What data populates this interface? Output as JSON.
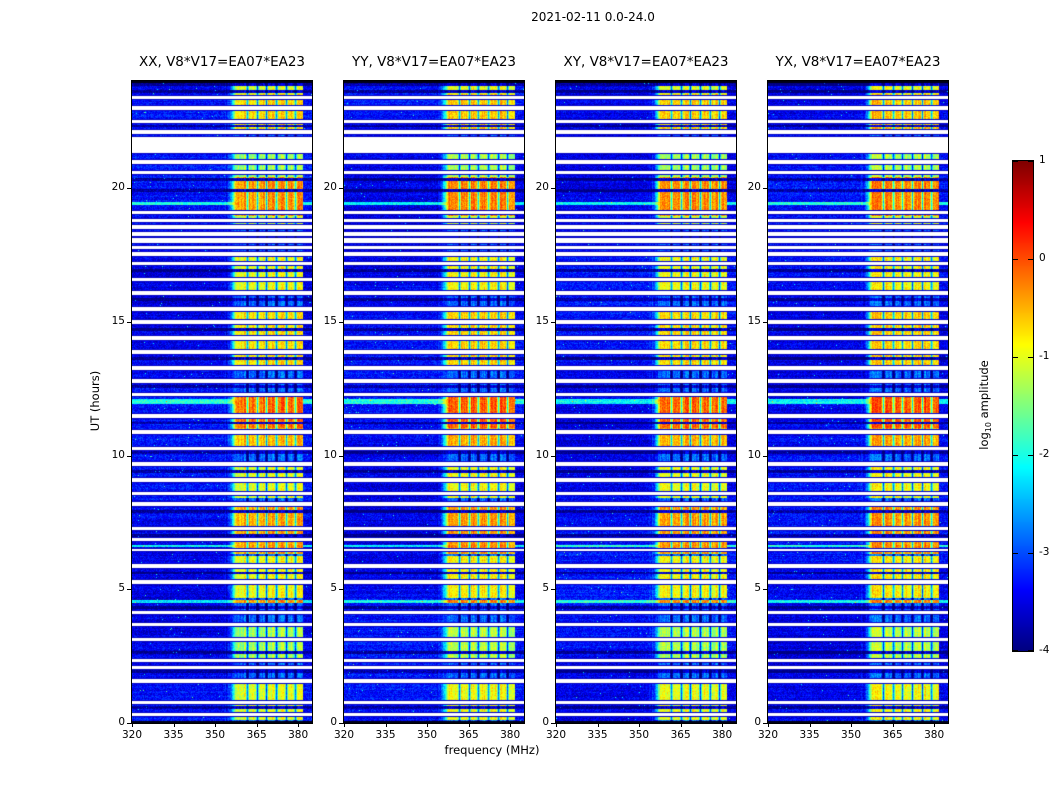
{
  "figure": {
    "title": "2021-02-11 0.0-24.0"
  },
  "chart_data": {
    "type": "heatmap",
    "title": "2021-02-11 0.0-24.0",
    "xlabel": "frequency (MHz)",
    "ylabel": "UT (hours)",
    "x_range": [
      320,
      385
    ],
    "y_range": [
      0,
      24
    ],
    "x_ticks": [
      320,
      335,
      350,
      365,
      380
    ],
    "y_ticks": [
      0,
      5,
      10,
      15,
      20
    ],
    "panels": [
      {
        "id": "xx",
        "title": "XX, V8*V17=EA07*EA23",
        "band_boost": 0.0
      },
      {
        "id": "yy",
        "title": "YY, V8*V17=EA07*EA23",
        "band_boost": 0.1
      },
      {
        "id": "xy",
        "title": "XY, V8*V17=EA07*EA23",
        "band_boost": 0.04
      },
      {
        "id": "yx",
        "title": "YX, V8*V17=EA07*EA23",
        "band_boost": 0.1
      }
    ],
    "colorbar": {
      "label_prefix": "log",
      "label_sub": "10",
      "label_suffix": " amplitude",
      "range": [
        -4,
        1
      ],
      "ticks": [
        1,
        0,
        -1,
        -2,
        -3,
        -4
      ],
      "colormap": "jet"
    },
    "features": {
      "background_level": -3.4,
      "band_idle_level": -2.85,
      "rfi_band_mhz": [
        357.5,
        381.5
      ],
      "band_channel_edges_mhz": [
        361.5,
        365,
        368.5,
        372,
        375.5,
        379
      ],
      "band_blocks": [
        [
          0.15,
          1.65,
          -1.0
        ],
        [
          2.4,
          3.6,
          -1.3
        ],
        [
          4.7,
          6.25,
          -0.9
        ],
        [
          6.35,
          8.15,
          -0.45
        ],
        [
          8.45,
          9.6,
          -1.0
        ],
        [
          10.35,
          11.05,
          -0.55
        ],
        [
          11.05,
          12.2,
          -0.15
        ],
        [
          13.3,
          15.6,
          -0.75
        ],
        [
          16.2,
          17.45,
          -0.95
        ],
        [
          18.6,
          19.0,
          -1.2
        ],
        [
          19.0,
          20.4,
          -0.35
        ],
        [
          20.45,
          21.3,
          -1.35
        ],
        [
          22.2,
          23.55,
          -0.7
        ],
        [
          23.55,
          24.0,
          -1.05
        ]
      ],
      "data_gaps_ut": [
        [
          0.3,
          0.38
        ],
        [
          0.75,
          0.82
        ],
        [
          1.55,
          1.63
        ],
        [
          2.05,
          2.12
        ],
        [
          2.3,
          2.38
        ],
        [
          3.1,
          3.18
        ],
        [
          3.65,
          3.75
        ],
        [
          4.1,
          4.17
        ],
        [
          5.25,
          5.33
        ],
        [
          5.85,
          5.95
        ],
        [
          6.45,
          6.52
        ],
        [
          6.85,
          6.93
        ],
        [
          7.25,
          7.33
        ],
        [
          8.15,
          8.25
        ],
        [
          8.55,
          8.62
        ],
        [
          9.05,
          9.15
        ],
        [
          9.65,
          9.75
        ],
        [
          10.25,
          10.33
        ],
        [
          10.85,
          10.95
        ],
        [
          11.45,
          11.55
        ],
        [
          12.25,
          12.35
        ],
        [
          12.75,
          12.85
        ],
        [
          13.25,
          13.35
        ],
        [
          13.85,
          13.95
        ],
        [
          14.35,
          14.45
        ],
        [
          14.95,
          15.05
        ],
        [
          15.45,
          15.55
        ],
        [
          16.05,
          16.15
        ],
        [
          16.55,
          16.65
        ],
        [
          17.15,
          17.25
        ],
        [
          17.5,
          17.62
        ],
        [
          17.75,
          17.85
        ],
        [
          18.0,
          18.12
        ],
        [
          18.25,
          18.35
        ],
        [
          18.5,
          18.6
        ],
        [
          18.75,
          18.85
        ],
        [
          19.05,
          19.15
        ],
        [
          20.55,
          20.65
        ],
        [
          20.95,
          21.05
        ],
        [
          21.35,
          21.9
        ],
        [
          22.05,
          22.15
        ],
        [
          22.45,
          22.55
        ],
        [
          22.95,
          23.05
        ],
        [
          23.35,
          23.45
        ]
      ],
      "bright_rows_ut": [
        [
          4.52,
          4.6
        ],
        [
          6.6,
          6.66
        ],
        [
          11.95,
          12.1
        ],
        [
          19.4,
          19.48
        ]
      ],
      "dark_rows_ut": [
        [
          0.55,
          0.62
        ],
        [
          1.9,
          1.97
        ],
        [
          2.6,
          2.68
        ],
        [
          4.3,
          4.38
        ],
        [
          5.6,
          5.66
        ],
        [
          7.0,
          7.06
        ],
        [
          7.9,
          7.97
        ],
        [
          9.4,
          9.47
        ],
        [
          10.1,
          10.17
        ],
        [
          11.2,
          11.27
        ],
        [
          12.55,
          12.62
        ],
        [
          13.6,
          13.67
        ],
        [
          14.7,
          14.77
        ],
        [
          15.8,
          15.87
        ],
        [
          16.9,
          16.97
        ],
        [
          19.9,
          19.97
        ],
        [
          20.3,
          20.37
        ],
        [
          22.3,
          22.37
        ],
        [
          23.6,
          23.67
        ],
        [
          23.85,
          23.92
        ]
      ]
    }
  }
}
